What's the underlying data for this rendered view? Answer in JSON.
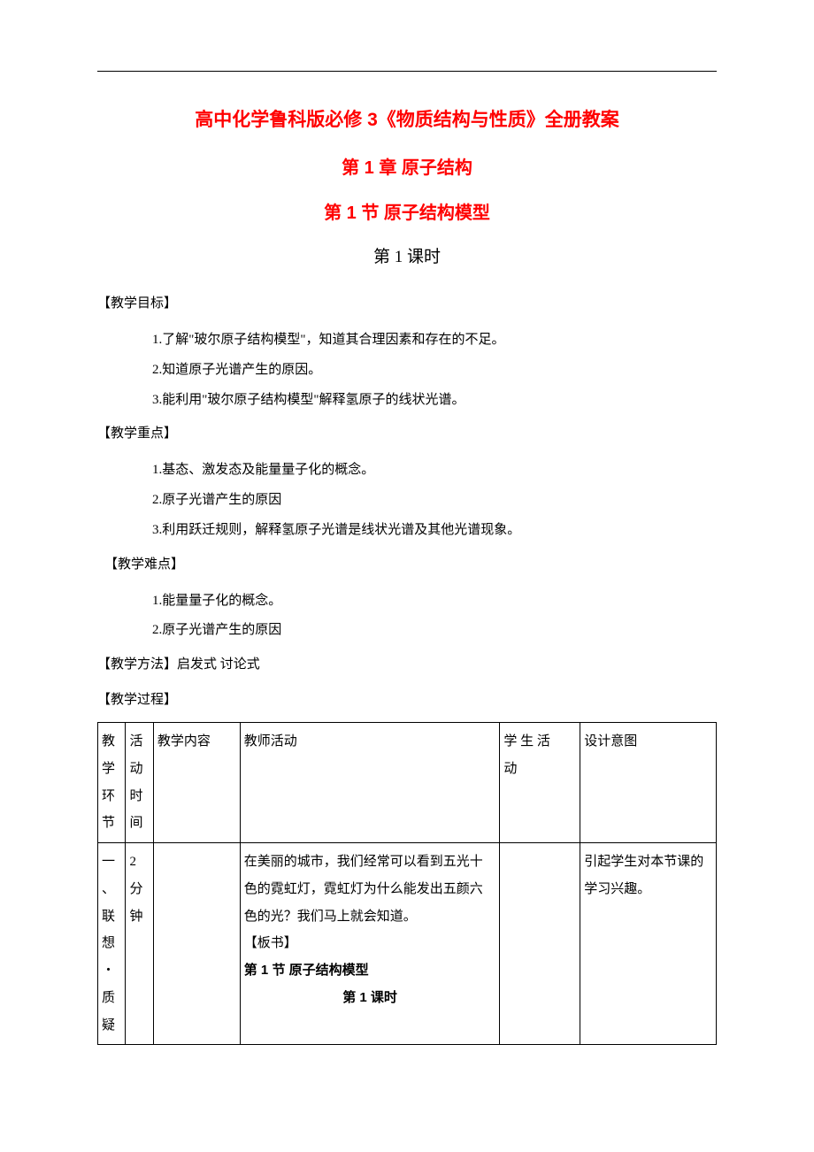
{
  "colors": {
    "title": "#ff0000",
    "text": "#000000",
    "border": "#000000",
    "bg": "#ffffff"
  },
  "fonts": {
    "heading_family": "SimHei",
    "body_family": "SimSun",
    "title_size_pt": 16,
    "body_size_pt": 11
  },
  "titles": {
    "main": "高中化学鲁科版必修 3《物质结构与性质》全册教案",
    "chapter": "第 1 章  原子结构",
    "section": "第 1 节    原子结构模型",
    "period": "第 1 课时"
  },
  "headings": {
    "objectives": "【教学目标】",
    "keypoints": "【教学重点】",
    "difficulties": "【教学难点】",
    "methods_label": "【教学方法】",
    "methods_value": "启发式 讨论式",
    "process": "【教学过程】"
  },
  "objectives": {
    "i1": "1.了解\"玻尔原子结构模型\"，知道其合理因素和存在的不足。",
    "i2": "2.知道原子光谱产生的原因。",
    "i3": "3.能利用\"玻尔原子结构模型\"解释氢原子的线状光谱。"
  },
  "keypoints": {
    "i1": "1.基态、激发态及能量量子化的概念。",
    "i2": "2.原子光谱产生的原因",
    "i3": "3.利用跃迁规则，解释氢原子光谱是线状光谱及其他光谱现象。"
  },
  "difficulties": {
    "i1": "1.能量量子化的概念。",
    "i2": "2.原子光谱产生的原因"
  },
  "table": {
    "header": {
      "c1": "教学环节",
      "c2": "活动时间",
      "c3": "教学内容",
      "c4": "教师活动",
      "c5": "学 生 活动",
      "c6": "设计意图"
    },
    "row1": {
      "c1": "一、联想・质疑",
      "c2": "2分钟",
      "c3": "",
      "teacher_p1": "在美丽的城市，我们经常可以看到五光十色的霓虹灯，霓虹灯为什么能发出五颜六色的光？我们马上就会知道。",
      "teacher_p2": "【板书】",
      "teacher_p3": "第 1 节    原子结构模型",
      "teacher_p4": "第 1 课时",
      "c5": "",
      "c6": "引起学生对本节课的学习兴趣。"
    }
  }
}
